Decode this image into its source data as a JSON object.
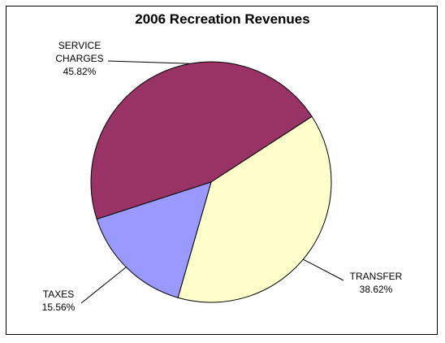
{
  "chart_data": {
    "type": "pie",
    "title": "2006 Recreation Revenues",
    "slices": [
      {
        "label_lines": [
          "SERVICE",
          "CHARGES"
        ],
        "value": 45.82,
        "value_label": "45.82%",
        "color": "#993366"
      },
      {
        "label_lines": [
          "TRANSFER"
        ],
        "value": 38.62,
        "value_label": "38.62%",
        "color": "#ffffcc"
      },
      {
        "label_lines": [
          "TAXES"
        ],
        "value": 15.56,
        "value_label": "15.56%",
        "color": "#9999ff"
      }
    ],
    "legend": "none"
  }
}
